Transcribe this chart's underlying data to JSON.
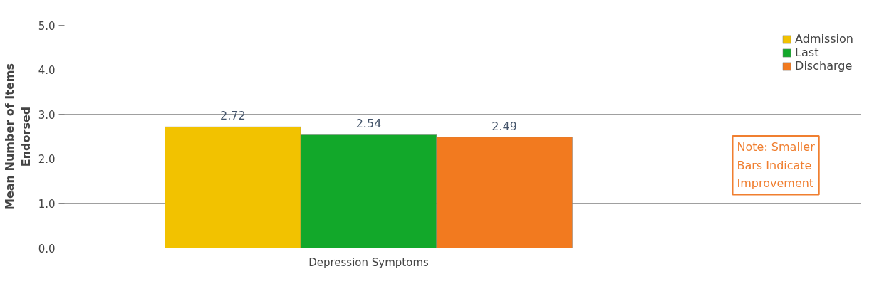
{
  "chart_data": {
    "type": "bar",
    "ylabel": "Mean Number of Items\nEndorsed",
    "categories": [
      "Depression Symptoms"
    ],
    "series": [
      {
        "name": "Admission",
        "color": "#f2c200",
        "values": [
          2.72
        ]
      },
      {
        "name": "Last",
        "color": "#12a82a",
        "values": [
          2.54
        ]
      },
      {
        "name": "Discharge",
        "color": "#f27a1f",
        "values": [
          2.49
        ]
      }
    ],
    "ylim": [
      0,
      5
    ],
    "yticks": [
      {
        "value": 0,
        "label": "0.0"
      },
      {
        "value": 1,
        "label": "1.0"
      },
      {
        "value": 2,
        "label": "2.0"
      },
      {
        "value": 3,
        "label": "3.0"
      },
      {
        "value": 4,
        "label": "4.0"
      },
      {
        "value": 5,
        "label": "5.0"
      }
    ],
    "grid": "y",
    "legend": "top right",
    "data_labels": true,
    "annotations": [
      "Note: Smaller\nBars Indicate\nImprovement"
    ]
  }
}
